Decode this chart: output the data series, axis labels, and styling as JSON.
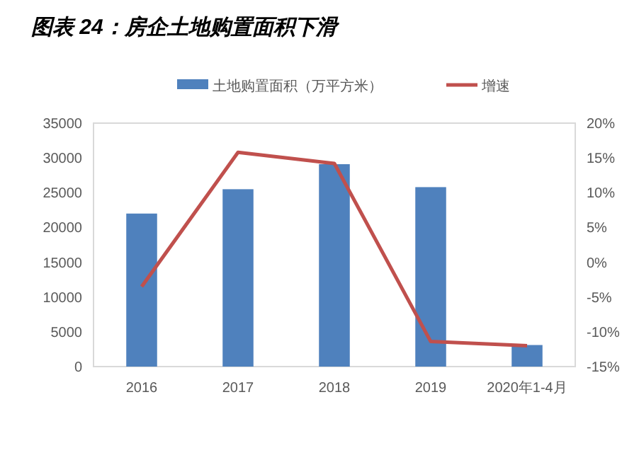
{
  "chart_data": {
    "type": "bar",
    "title": "图表 24：房企土地购置面积下滑",
    "categories": [
      "2016",
      "2017",
      "2018",
      "2019",
      "2020年1-4月"
    ],
    "series": [
      {
        "name": "土地购置面积（万平方米）",
        "color": "#4f81bd",
        "values": [
          22000,
          25500,
          29100,
          25800,
          3100
        ]
      },
      {
        "name": "增速",
        "type": "line",
        "axis": "y2",
        "color": "#c0504d",
        "values": [
          -3.5,
          15.8,
          14.2,
          -11.4,
          -12.0
        ]
      }
    ],
    "ylim": [
      0,
      35000
    ],
    "yticks": [
      0,
      5000,
      10000,
      15000,
      20000,
      25000,
      30000,
      35000
    ],
    "y2lim": [
      -15,
      20
    ],
    "y2ticks": [
      {
        "value": -15,
        "label": "-15%"
      },
      {
        "value": -10,
        "label": "-10%"
      },
      {
        "value": -5,
        "label": "-5%"
      },
      {
        "value": 0,
        "label": "0%"
      },
      {
        "value": 5,
        "label": "5%"
      },
      {
        "value": 10,
        "label": "10%"
      },
      {
        "value": 15,
        "label": "15%"
      },
      {
        "value": 20,
        "label": "20%"
      }
    ],
    "legend": "top",
    "marker": "none"
  }
}
